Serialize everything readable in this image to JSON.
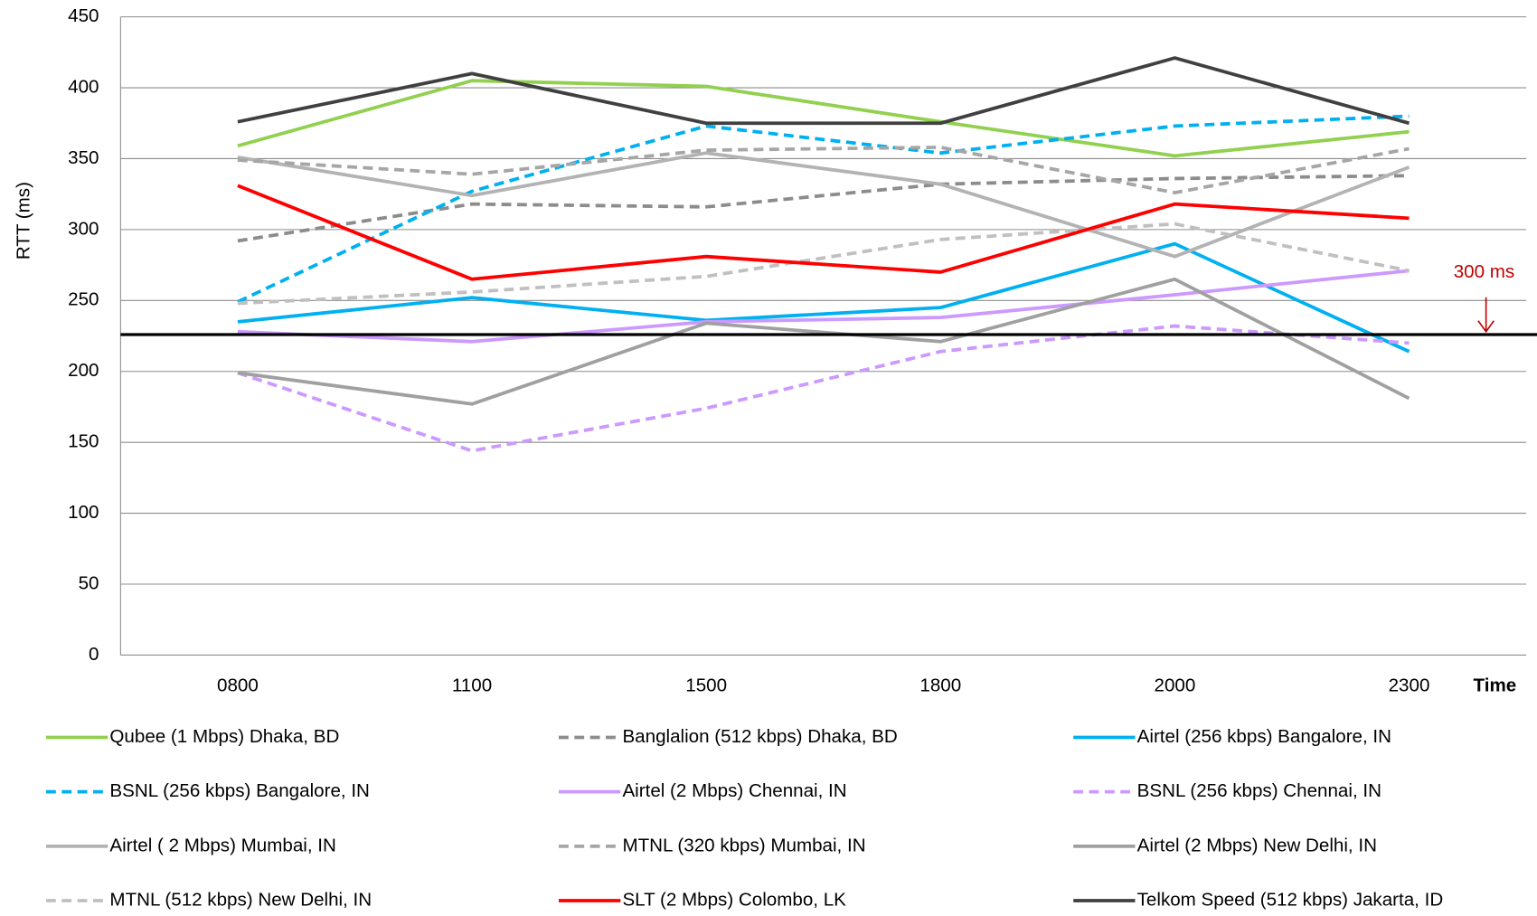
{
  "chart_data": {
    "type": "line",
    "y_label": "RTT (ms)",
    "x_label": "Time",
    "categories": [
      "0800",
      "1100",
      "1500",
      "1800",
      "2000",
      "2300"
    ],
    "ylim": [
      0,
      450
    ],
    "yticks": [
      0,
      50,
      100,
      150,
      200,
      250,
      300,
      350,
      400,
      450
    ],
    "grid": true,
    "reference_line": 226,
    "annotation": "300 ms",
    "series": [
      {
        "name": "Qubee (1 Mbps) Dhaka, BD",
        "color": "#92d050",
        "dashed": false,
        "values": [
          359,
          405,
          401,
          376,
          352,
          369
        ]
      },
      {
        "name": "Banglalion (512 kbps) Dhaka, BD",
        "color": "#8c8c8c",
        "dashed": true,
        "values": [
          292,
          318,
          316,
          332,
          336,
          338
        ]
      },
      {
        "name": "Airtel (256 kbps) Bangalore, IN",
        "color": "#00b0f0",
        "dashed": false,
        "values": [
          235,
          252,
          236,
          245,
          290,
          214
        ]
      },
      {
        "name": "BSNL (256 kbps) Bangalore, IN",
        "color": "#00b0f0",
        "dashed": true,
        "values": [
          249,
          327,
          373,
          354,
          373,
          380
        ]
      },
      {
        "name": "Airtel (2 Mbps) Chennai, IN",
        "color": "#cc99ff",
        "dashed": false,
        "values": [
          228,
          221,
          235,
          238,
          254,
          271
        ]
      },
      {
        "name": "BSNL (256 kbps) Chennai, IN",
        "color": "#cc99ff",
        "dashed": true,
        "values": [
          199,
          144,
          174,
          214,
          232,
          220
        ]
      },
      {
        "name": "Airtel ( 2 Mbps) Mumbai, IN",
        "color": "#b3b3b3",
        "dashed": false,
        "values": [
          351,
          324,
          354,
          332,
          281,
          344
        ]
      },
      {
        "name": "MTNL (320 kbps) Mumbai, IN",
        "color": "#a6a6a6",
        "dashed": true,
        "values": [
          349,
          339,
          356,
          358,
          326,
          357
        ]
      },
      {
        "name": "Airtel (2 Mbps) New Delhi, IN",
        "color": "#a0a0a0",
        "dashed": false,
        "values": [
          199,
          177,
          234,
          221,
          265,
          181
        ]
      },
      {
        "name": "MTNL (512 kbps) New Delhi, IN",
        "color": "#c0c0c0",
        "dashed": true,
        "values": [
          248,
          256,
          267,
          293,
          304,
          271
        ]
      },
      {
        "name": "SLT (2 Mbps) Colombo, LK",
        "color": "#ff0000",
        "dashed": false,
        "values": [
          331,
          265,
          281,
          270,
          318,
          308
        ]
      },
      {
        "name": "Telkom Speed (512 kbps) Jakarta, ID",
        "color": "#404040",
        "dashed": false,
        "values": [
          376,
          410,
          375,
          375,
          421,
          375
        ]
      }
    ]
  }
}
